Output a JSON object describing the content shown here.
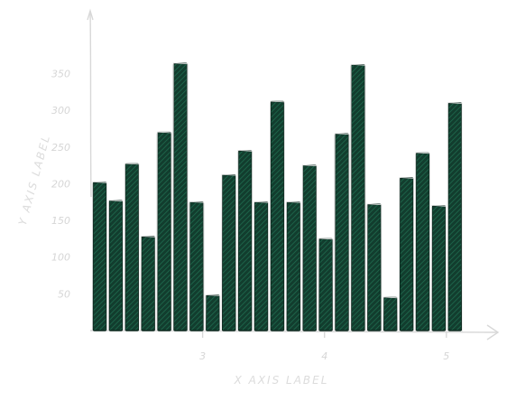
{
  "chart_data": {
    "type": "bar",
    "style": "hand-drawn hatched",
    "xlabel": "X AXIS LABEL",
    "ylabel": "Y AXIS LABEL",
    "x_ticks": [
      {
        "value": 3,
        "label": "3"
      },
      {
        "value": 4,
        "label": "4"
      },
      {
        "value": 5,
        "label": "5"
      }
    ],
    "y_ticks": [
      50,
      100,
      150,
      200,
      250,
      300,
      350
    ],
    "ylim": [
      0,
      390
    ],
    "x_start": 2.1,
    "x_step": 0.1325,
    "values": [
      202,
      177,
      227,
      128,
      270,
      364,
      175,
      48,
      212,
      245,
      175,
      312,
      175,
      225,
      125,
      268,
      362,
      172,
      45,
      208,
      242,
      170,
      310
    ],
    "bar_color": "#123d2e",
    "hatch_color": "#1f6b4f",
    "edge_color": "#e6e6e6",
    "axis_color": "#d8d8d8",
    "grid": false
  }
}
